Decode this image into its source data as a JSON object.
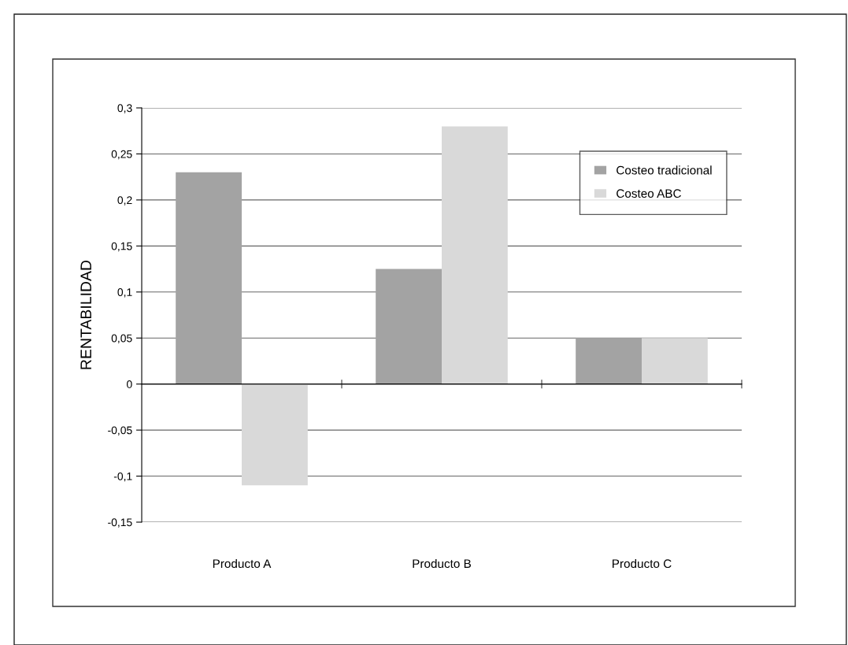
{
  "chart_data": {
    "type": "bar",
    "ylabel": "RENTABILIDAD",
    "categories": [
      "Producto A",
      "Producto B",
      "Producto C"
    ],
    "series": [
      {
        "name": "Costeo tradicional",
        "color": "#a3a3a3",
        "values": [
          0.23,
          0.125,
          0.05
        ]
      },
      {
        "name": "Costeo ABC",
        "color": "#d9d9d9",
        "values": [
          -0.11,
          0.28,
          0.05
        ]
      }
    ],
    "ylim": [
      -0.15,
      0.3
    ],
    "yticks": [
      {
        "value": -0.15,
        "label": "-0,15"
      },
      {
        "value": -0.1,
        "label": "-0,1"
      },
      {
        "value": -0.05,
        "label": "-0,05"
      },
      0,
      {
        "value": 0.05,
        "label": "0,05"
      },
      {
        "value": 0.1,
        "label": "0,1"
      },
      {
        "value": 0.15,
        "label": "0,15"
      },
      {
        "value": 0.2,
        "label": "0,2"
      },
      {
        "value": 0.25,
        "label": "0,25"
      },
      {
        "value": 0.3,
        "label": "0,3"
      }
    ],
    "grid": "y",
    "legend": "top right"
  }
}
